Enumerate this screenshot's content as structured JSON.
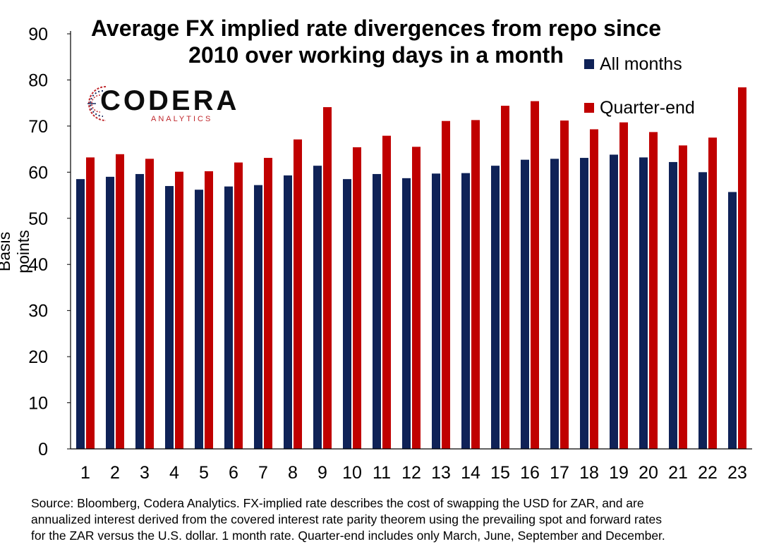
{
  "chart_data": {
    "type": "bar",
    "title_line1": "Average FX implied rate divergences from repo since",
    "title_line2": "2010  over working days in a month",
    "ylabel": "Basis points",
    "xlabel": "",
    "ylim": [
      0,
      90
    ],
    "yticks": [
      0,
      10,
      20,
      30,
      40,
      50,
      60,
      70,
      80,
      90
    ],
    "categories": [
      "1",
      "2",
      "3",
      "4",
      "5",
      "6",
      "7",
      "8",
      "9",
      "10",
      "11",
      "12",
      "13",
      "14",
      "15",
      "16",
      "17",
      "18",
      "19",
      "20",
      "21",
      "22",
      "23"
    ],
    "series": [
      {
        "name": "All months",
        "color": "#0f2257",
        "values": [
          58.5,
          59,
          59.6,
          57,
          56.2,
          56.9,
          57.2,
          59.3,
          61.4,
          58.5,
          59.6,
          58.7,
          59.7,
          59.8,
          61.4,
          62.7,
          62.9,
          63.1,
          63.8,
          63.2,
          62.2,
          60,
          55.7
        ]
      },
      {
        "name": "Quarter-end",
        "color": "#c00000",
        "values": [
          63.2,
          63.9,
          62.9,
          60.1,
          60.2,
          62.1,
          63.1,
          67.1,
          74.1,
          65.4,
          67.9,
          65.5,
          71.1,
          71.3,
          74.4,
          75.4,
          71.2,
          69.3,
          70.8,
          68.7,
          65.8,
          67.5,
          78.4
        ]
      }
    ],
    "grid": false,
    "legend_position": "top-right"
  },
  "logo": {
    "word": "CODERA",
    "sub": "ANALYTICS"
  },
  "footnote_lines": [
    "Source: Bloomberg, Codera Analytics. FX-implied rate describes the cost of swapping the USD for ZAR, and are",
    "annualized interest derived from the covered interest rate parity theorem using the prevailing spot and forward rates",
    "for the ZAR versus the U.S. dollar. 1 month rate. Quarter-end includes only March, June, September and December."
  ]
}
